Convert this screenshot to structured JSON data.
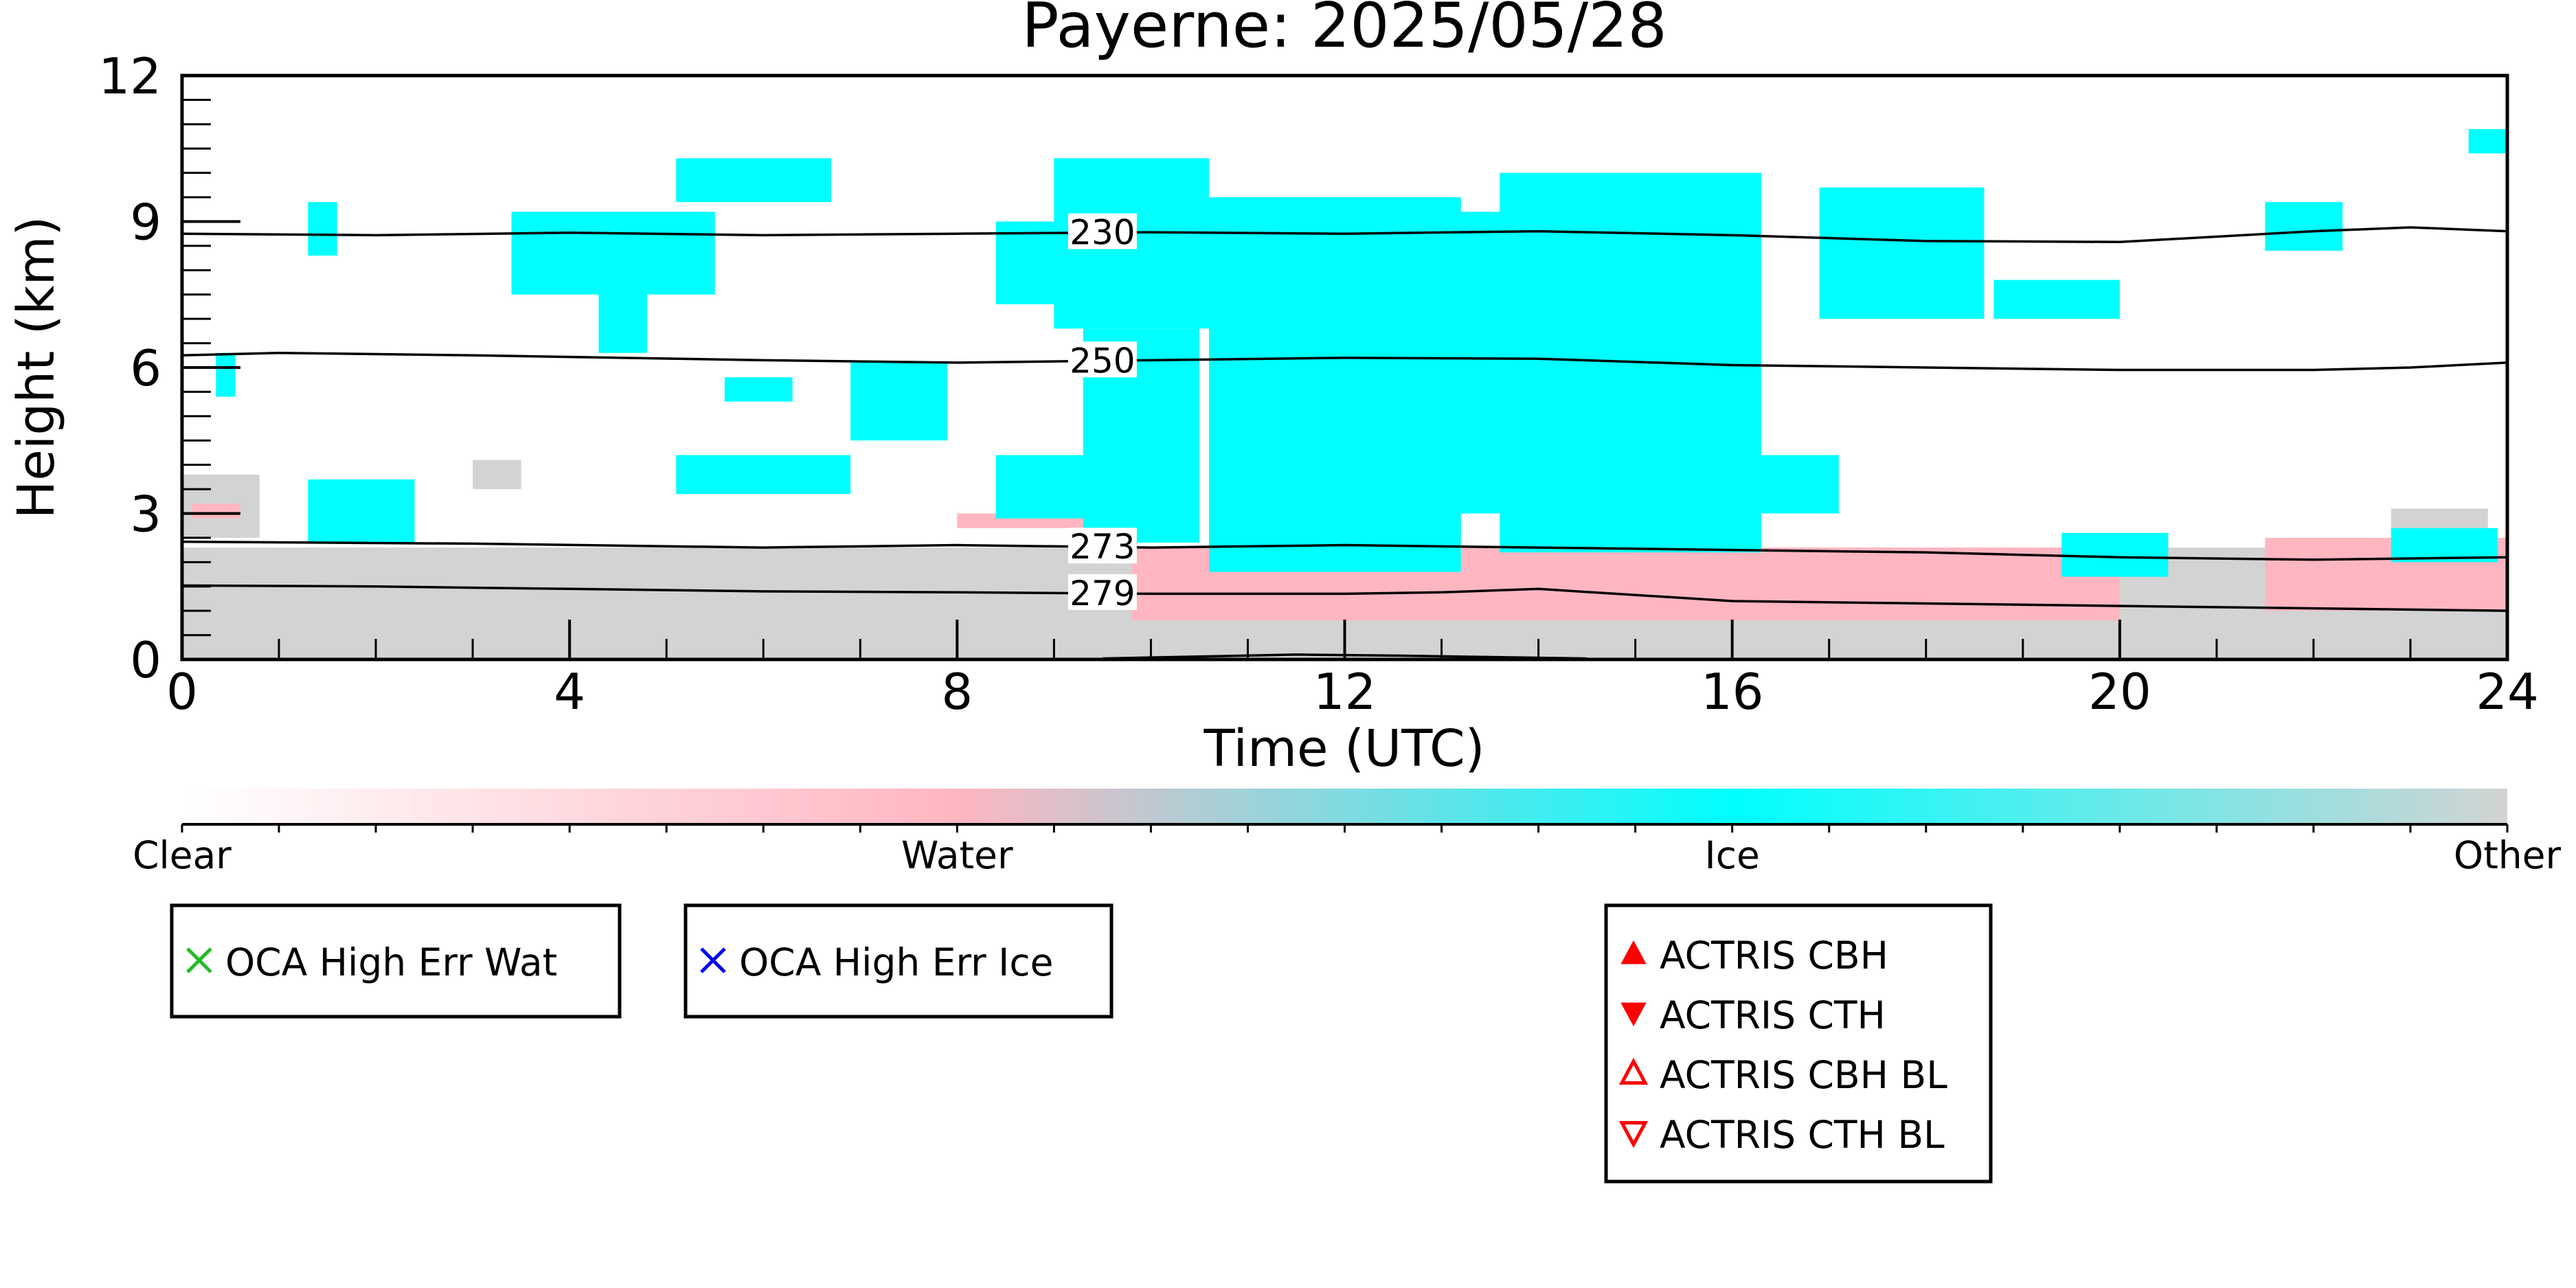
{
  "chart_data": {
    "type": "heatmap",
    "title": "Payerne: 2025/05/28",
    "xlabel": "Time (UTC)",
    "ylabel": "Height (km)",
    "xlim": [
      0,
      24
    ],
    "ylim": [
      0,
      12
    ],
    "xticks": [
      0,
      4,
      8,
      12,
      16,
      20,
      24
    ],
    "yticks": [
      0,
      3,
      6,
      9,
      12
    ],
    "colors": {
      "Clear": "#ffffff",
      "Water": "#ffb6c1",
      "Ice": "#00ffff",
      "Other": "#d3d3d3",
      "contour": "#000000"
    },
    "classification_regions": [
      {
        "class": "Other",
        "x": [
          0,
          24
        ],
        "y": [
          0,
          2.3
        ]
      },
      {
        "class": "Other",
        "x": [
          0,
          0.8
        ],
        "y": [
          2.5,
          3.8
        ]
      },
      {
        "class": "Other",
        "x": [
          3.0,
          3.5
        ],
        "y": [
          3.5,
          4.1
        ]
      },
      {
        "class": "Other",
        "x": [
          22.8,
          23.8
        ],
        "y": [
          2.0,
          3.1
        ]
      },
      {
        "class": "Water",
        "x": [
          9.8,
          20.0
        ],
        "y": [
          0.8,
          2.3
        ]
      },
      {
        "class": "Water",
        "x": [
          21.5,
          24
        ],
        "y": [
          1.0,
          2.5
        ]
      },
      {
        "class": "Water",
        "x": [
          0.1,
          0.6
        ],
        "y": [
          2.9,
          3.2
        ]
      },
      {
        "class": "Water",
        "x": [
          8.0,
          9.6
        ],
        "y": [
          2.7,
          3.0
        ]
      },
      {
        "class": "Ice",
        "x": [
          0.35,
          0.55
        ],
        "y": [
          5.4,
          6.3
        ]
      },
      {
        "class": "Ice",
        "x": [
          1.3,
          1.6
        ],
        "y": [
          8.3,
          9.4
        ]
      },
      {
        "class": "Ice",
        "x": [
          1.3,
          2.4
        ],
        "y": [
          2.4,
          3.7
        ]
      },
      {
        "class": "Ice",
        "x": [
          3.4,
          5.5
        ],
        "y": [
          7.5,
          9.2
        ]
      },
      {
        "class": "Ice",
        "x": [
          4.3,
          4.8
        ],
        "y": [
          6.3,
          7.6
        ]
      },
      {
        "class": "Ice",
        "x": [
          5.1,
          6.7
        ],
        "y": [
          9.4,
          10.3
        ]
      },
      {
        "class": "Ice",
        "x": [
          5.6,
          6.3
        ],
        "y": [
          5.3,
          5.8
        ]
      },
      {
        "class": "Ice",
        "x": [
          6.9,
          7.9
        ],
        "y": [
          4.5,
          6.1
        ]
      },
      {
        "class": "Ice",
        "x": [
          5.1,
          6.9
        ],
        "y": [
          3.4,
          4.2
        ]
      },
      {
        "class": "Ice",
        "x": [
          8.4,
          9.3
        ],
        "y": [
          7.3,
          9.0
        ]
      },
      {
        "class": "Ice",
        "x": [
          9.0,
          10.6
        ],
        "y": [
          6.8,
          10.3
        ]
      },
      {
        "class": "Ice",
        "x": [
          9.3,
          10.5
        ],
        "y": [
          2.4,
          6.8
        ]
      },
      {
        "class": "Ice",
        "x": [
          8.4,
          9.6
        ],
        "y": [
          2.9,
          4.2
        ]
      },
      {
        "class": "Ice",
        "x": [
          10.6,
          13.2
        ],
        "y": [
          1.8,
          9.5
        ]
      },
      {
        "class": "Ice",
        "x": [
          12.2,
          13.8
        ],
        "y": [
          3.0,
          9.2
        ]
      },
      {
        "class": "Ice",
        "x": [
          13.6,
          16.3
        ],
        "y": [
          2.2,
          10.0
        ]
      },
      {
        "class": "Ice",
        "x": [
          16.1,
          17.1
        ],
        "y": [
          3.0,
          4.2
        ]
      },
      {
        "class": "Ice",
        "x": [
          16.9,
          18.6
        ],
        "y": [
          7.0,
          9.7
        ]
      },
      {
        "class": "Ice",
        "x": [
          18.7,
          20.0
        ],
        "y": [
          7.0,
          7.8
        ]
      },
      {
        "class": "Ice",
        "x": [
          19.4,
          20.5
        ],
        "y": [
          1.7,
          2.6
        ]
      },
      {
        "class": "Ice",
        "x": [
          21.5,
          22.3
        ],
        "y": [
          8.4,
          9.4
        ]
      },
      {
        "class": "Ice",
        "x": [
          23.6,
          24
        ],
        "y": [
          10.4,
          10.9
        ]
      },
      {
        "class": "Ice",
        "x": [
          22.8,
          23.9
        ],
        "y": [
          2.0,
          2.7
        ]
      }
    ],
    "contours": [
      {
        "label": "230",
        "label_x": 9.5,
        "x": [
          0,
          2,
          4,
          6,
          8,
          10,
          12,
          14,
          16,
          18,
          20,
          22,
          23,
          24
        ],
        "y": [
          8.75,
          8.72,
          8.77,
          8.72,
          8.75,
          8.78,
          8.75,
          8.8,
          8.72,
          8.6,
          8.58,
          8.8,
          8.88,
          8.8
        ]
      },
      {
        "label": "250",
        "label_x": 9.5,
        "x": [
          0,
          1,
          3,
          6,
          8,
          10,
          12,
          14,
          16,
          18,
          20,
          22,
          23,
          24
        ],
        "y": [
          6.25,
          6.3,
          6.25,
          6.15,
          6.1,
          6.15,
          6.2,
          6.18,
          6.05,
          6.0,
          5.95,
          5.95,
          6.0,
          6.1
        ]
      },
      {
        "label": "273",
        "label_x": 9.5,
        "x": [
          0,
          3,
          6,
          8,
          10,
          12,
          14,
          16,
          18,
          20,
          22,
          24
        ],
        "y": [
          2.42,
          2.38,
          2.3,
          2.35,
          2.3,
          2.35,
          2.3,
          2.25,
          2.2,
          2.1,
          2.05,
          2.1
        ]
      },
      {
        "label": "279",
        "label_x": 9.5,
        "x": [
          0,
          2,
          4,
          6,
          8,
          10,
          12,
          13,
          14,
          16,
          18,
          20,
          22,
          24
        ],
        "y": [
          1.52,
          1.5,
          1.45,
          1.4,
          1.38,
          1.35,
          1.35,
          1.38,
          1.45,
          1.2,
          1.15,
          1.1,
          1.05,
          1.0
        ]
      },
      {
        "label": "",
        "label_x": null,
        "x": [
          9.5,
          10.5,
          11.5,
          12.5,
          13.5,
          14.5
        ],
        "y": [
          0.02,
          0.06,
          0.1,
          0.08,
          0.05,
          0.02
        ]
      }
    ],
    "colorbar": {
      "labels": [
        "Clear",
        "Water",
        "Ice",
        "Other"
      ],
      "stops": [
        "#ffffff",
        "#ffb6c1",
        "#00ffff",
        "#d3d3d3"
      ]
    },
    "legends": [
      {
        "entries": [
          {
            "marker": "x",
            "color": "#22bb22",
            "label": "OCA High Err Wat"
          }
        ]
      },
      {
        "entries": [
          {
            "marker": "x",
            "color": "#0000ee",
            "label": "OCA High Err Ice"
          }
        ]
      },
      {
        "entries": [
          {
            "marker": "triangle-up",
            "color": "#ff0000",
            "label": "ACTRIS CBH"
          },
          {
            "marker": "triangle-down",
            "color": "#ff0000",
            "label": "ACTRIS CTH"
          },
          {
            "marker": "triangle-up-open",
            "color": "#ff0000",
            "label": "ACTRIS CBH BL"
          },
          {
            "marker": "triangle-down-open",
            "color": "#ff0000",
            "label": "ACTRIS CTH BL"
          }
        ]
      }
    ]
  }
}
